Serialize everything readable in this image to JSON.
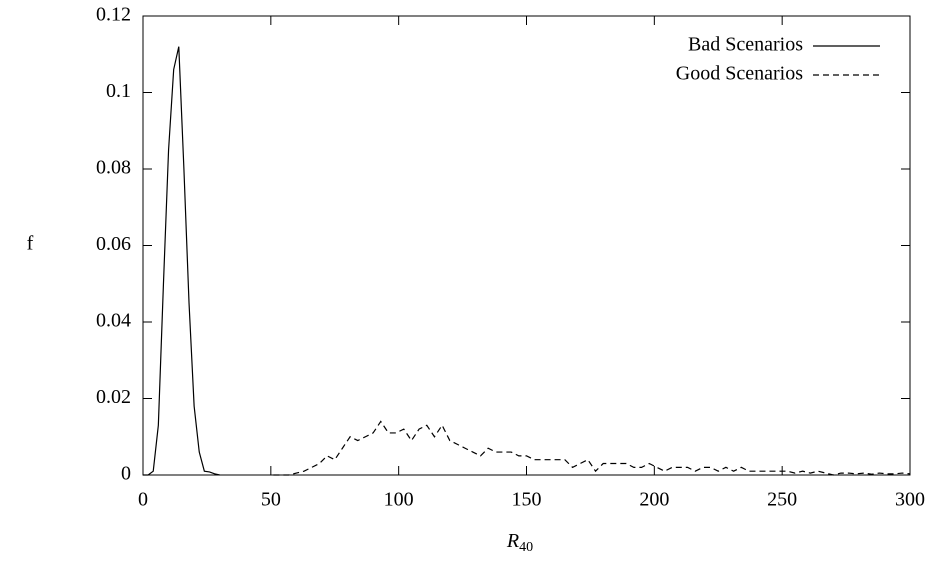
{
  "chart_data": {
    "type": "line",
    "x_label": "R",
    "x_label_subscript": "40",
    "y_label": "f",
    "xlim": [
      0,
      300
    ],
    "xticks": [
      0,
      50,
      100,
      150,
      200,
      250,
      300
    ],
    "ylim": [
      0,
      0.12
    ],
    "yticks": [
      0,
      0.02,
      0.04,
      0.06,
      0.08,
      0.1,
      0.12
    ],
    "grid": false,
    "legend": "upper right",
    "series": [
      {
        "name": "Bad Scenarios",
        "color": "#000000",
        "dash": "solid",
        "x": [
          0,
          2,
          4,
          6,
          8,
          10,
          12,
          14,
          16,
          18,
          20,
          22,
          24,
          26,
          28,
          30
        ],
        "values": [
          0,
          0,
          0.001,
          0.013,
          0.05,
          0.085,
          0.106,
          0.112,
          0.08,
          0.045,
          0.018,
          0.006,
          0.001,
          0.0008,
          0.0003,
          0
        ]
      },
      {
        "name": "Good Scenarios",
        "color": "#000000",
        "dash": "dashed",
        "x": [
          51,
          54,
          57,
          60,
          63,
          66,
          69,
          72,
          75,
          78,
          81,
          84,
          87,
          90,
          93,
          96,
          99,
          102,
          105,
          108,
          111,
          114,
          117,
          120,
          123,
          126,
          129,
          132,
          135,
          138,
          141,
          144,
          147,
          150,
          153,
          156,
          159,
          162,
          165,
          168,
          171,
          174,
          177,
          180,
          183,
          186,
          189,
          192,
          195,
          198,
          201,
          204,
          207,
          210,
          213,
          216,
          219,
          222,
          225,
          228,
          231,
          234,
          237,
          240,
          243,
          246,
          249,
          252,
          255,
          258,
          261,
          264,
          267,
          270,
          273,
          276,
          279,
          282,
          285,
          288,
          291,
          294,
          297,
          300
        ],
        "values": [
          0,
          0,
          0,
          0.0005,
          0.001,
          0.002,
          0.003,
          0.005,
          0.004,
          0.007,
          0.01,
          0.009,
          0.01,
          0.011,
          0.014,
          0.011,
          0.011,
          0.012,
          0.009,
          0.012,
          0.013,
          0.01,
          0.013,
          0.009,
          0.008,
          0.007,
          0.006,
          0.005,
          0.007,
          0.006,
          0.006,
          0.006,
          0.005,
          0.005,
          0.004,
          0.004,
          0.004,
          0.004,
          0.004,
          0.002,
          0.003,
          0.004,
          0.001,
          0.003,
          0.003,
          0.003,
          0.003,
          0.002,
          0.002,
          0.003,
          0.002,
          0.001,
          0.002,
          0.002,
          0.002,
          0.001,
          0.002,
          0.002,
          0.001,
          0.002,
          0.001,
          0.002,
          0.001,
          0.001,
          0.001,
          0.001,
          0.001,
          0.001,
          0.0005,
          0.001,
          0.0005,
          0.001,
          0.0005,
          0,
          0.0005,
          0.0005,
          0.0003,
          0.0005,
          0.0002,
          0.0005,
          0.0003,
          0.0003,
          0.0005,
          0.0003
        ]
      }
    ]
  }
}
